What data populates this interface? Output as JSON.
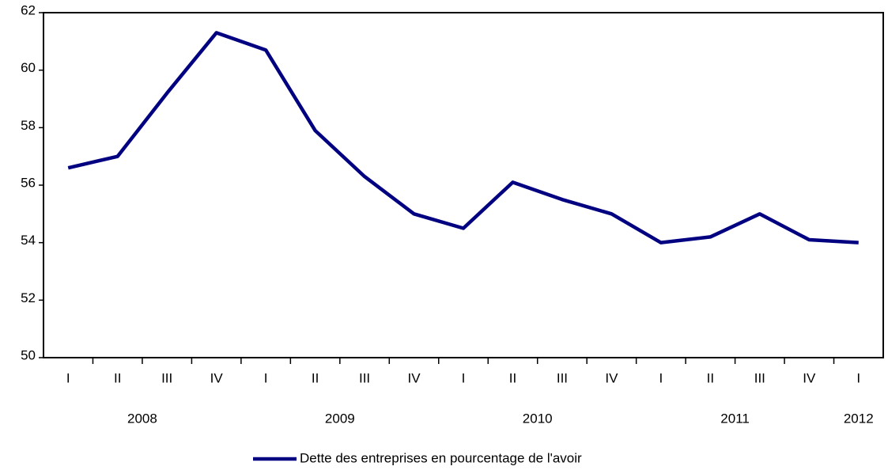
{
  "chart_data": {
    "type": "line",
    "categories": [
      "I",
      "II",
      "III",
      "IV",
      "I",
      "II",
      "III",
      "IV",
      "I",
      "II",
      "III",
      "IV",
      "I",
      "II",
      "III",
      "IV",
      "I"
    ],
    "year_labels": [
      "2008",
      null,
      null,
      null,
      "2009",
      null,
      null,
      null,
      "2010",
      null,
      null,
      null,
      "2011",
      null,
      null,
      null,
      "2012"
    ],
    "series": [
      {
        "name": "Dette des entreprises en pourcentage de l'avoir",
        "color": "#000080",
        "values": [
          56.6,
          57.0,
          59.2,
          61.3,
          60.7,
          57.9,
          56.3,
          55.0,
          54.5,
          56.1,
          55.5,
          55.0,
          54.0,
          54.2,
          55.0,
          54.1,
          54.0
        ]
      }
    ],
    "ylim": [
      50,
      62
    ],
    "yticks": [
      50,
      52,
      54,
      56,
      58,
      60,
      62
    ],
    "grid": false,
    "legend": "bottom"
  }
}
